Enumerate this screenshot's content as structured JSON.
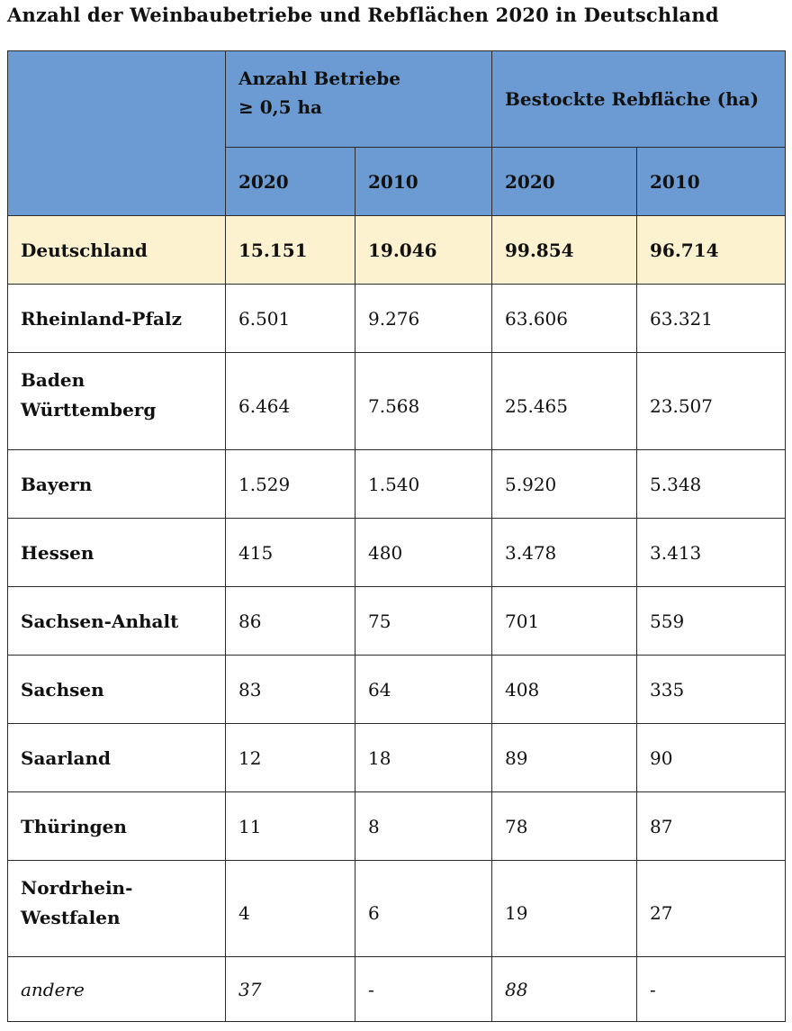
{
  "title": "Anzahl der Weinbaubetriebe und Rebflächen 2020 in Deutschland",
  "header": {
    "group1_line1": "Anzahl Betriebe",
    "group1_line2": "≥ 0,5 ha",
    "group2": "Bestockte Rebfläche (ha)",
    "years": [
      "2020",
      "2010",
      "2020",
      "2010"
    ]
  },
  "rows": [
    {
      "region": "Deutschland",
      "values": [
        "15.151",
        "19.046",
        "99.854",
        "96.714"
      ]
    },
    {
      "region": "Rheinland-Pfalz",
      "values": [
        "6.501",
        "9.276",
        "63.606",
        "63.321"
      ]
    },
    {
      "region_line1": "Baden",
      "region_line2": "Württemberg",
      "values": [
        "6.464",
        "7.568",
        "25.465",
        "23.507"
      ]
    },
    {
      "region": "Bayern",
      "values": [
        "1.529",
        "1.540",
        "5.920",
        "5.348"
      ]
    },
    {
      "region": "Hessen",
      "values": [
        "415",
        "480",
        "3.478",
        "3.413"
      ]
    },
    {
      "region": "Sachsen-Anhalt",
      "values": [
        "86",
        "75",
        "701",
        "559"
      ]
    },
    {
      "region": "Sachsen",
      "values": [
        "83",
        "64",
        "408",
        "335"
      ]
    },
    {
      "region": "Saarland",
      "values": [
        "12",
        "18",
        "89",
        "90"
      ]
    },
    {
      "region": "Thüringen",
      "values": [
        "11",
        "8",
        "78",
        "87"
      ]
    },
    {
      "region_line1": "Nordrhein-",
      "region_line2": "Westfalen",
      "values": [
        "4",
        "6",
        "19",
        "27"
      ]
    },
    {
      "region": "andere",
      "values": [
        "37",
        "-",
        "88",
        "-"
      ]
    }
  ],
  "colors": {
    "header_bg": "#6b9bd2",
    "total_row_bg": "#fdf2d0",
    "border": "#2b2b2b"
  }
}
